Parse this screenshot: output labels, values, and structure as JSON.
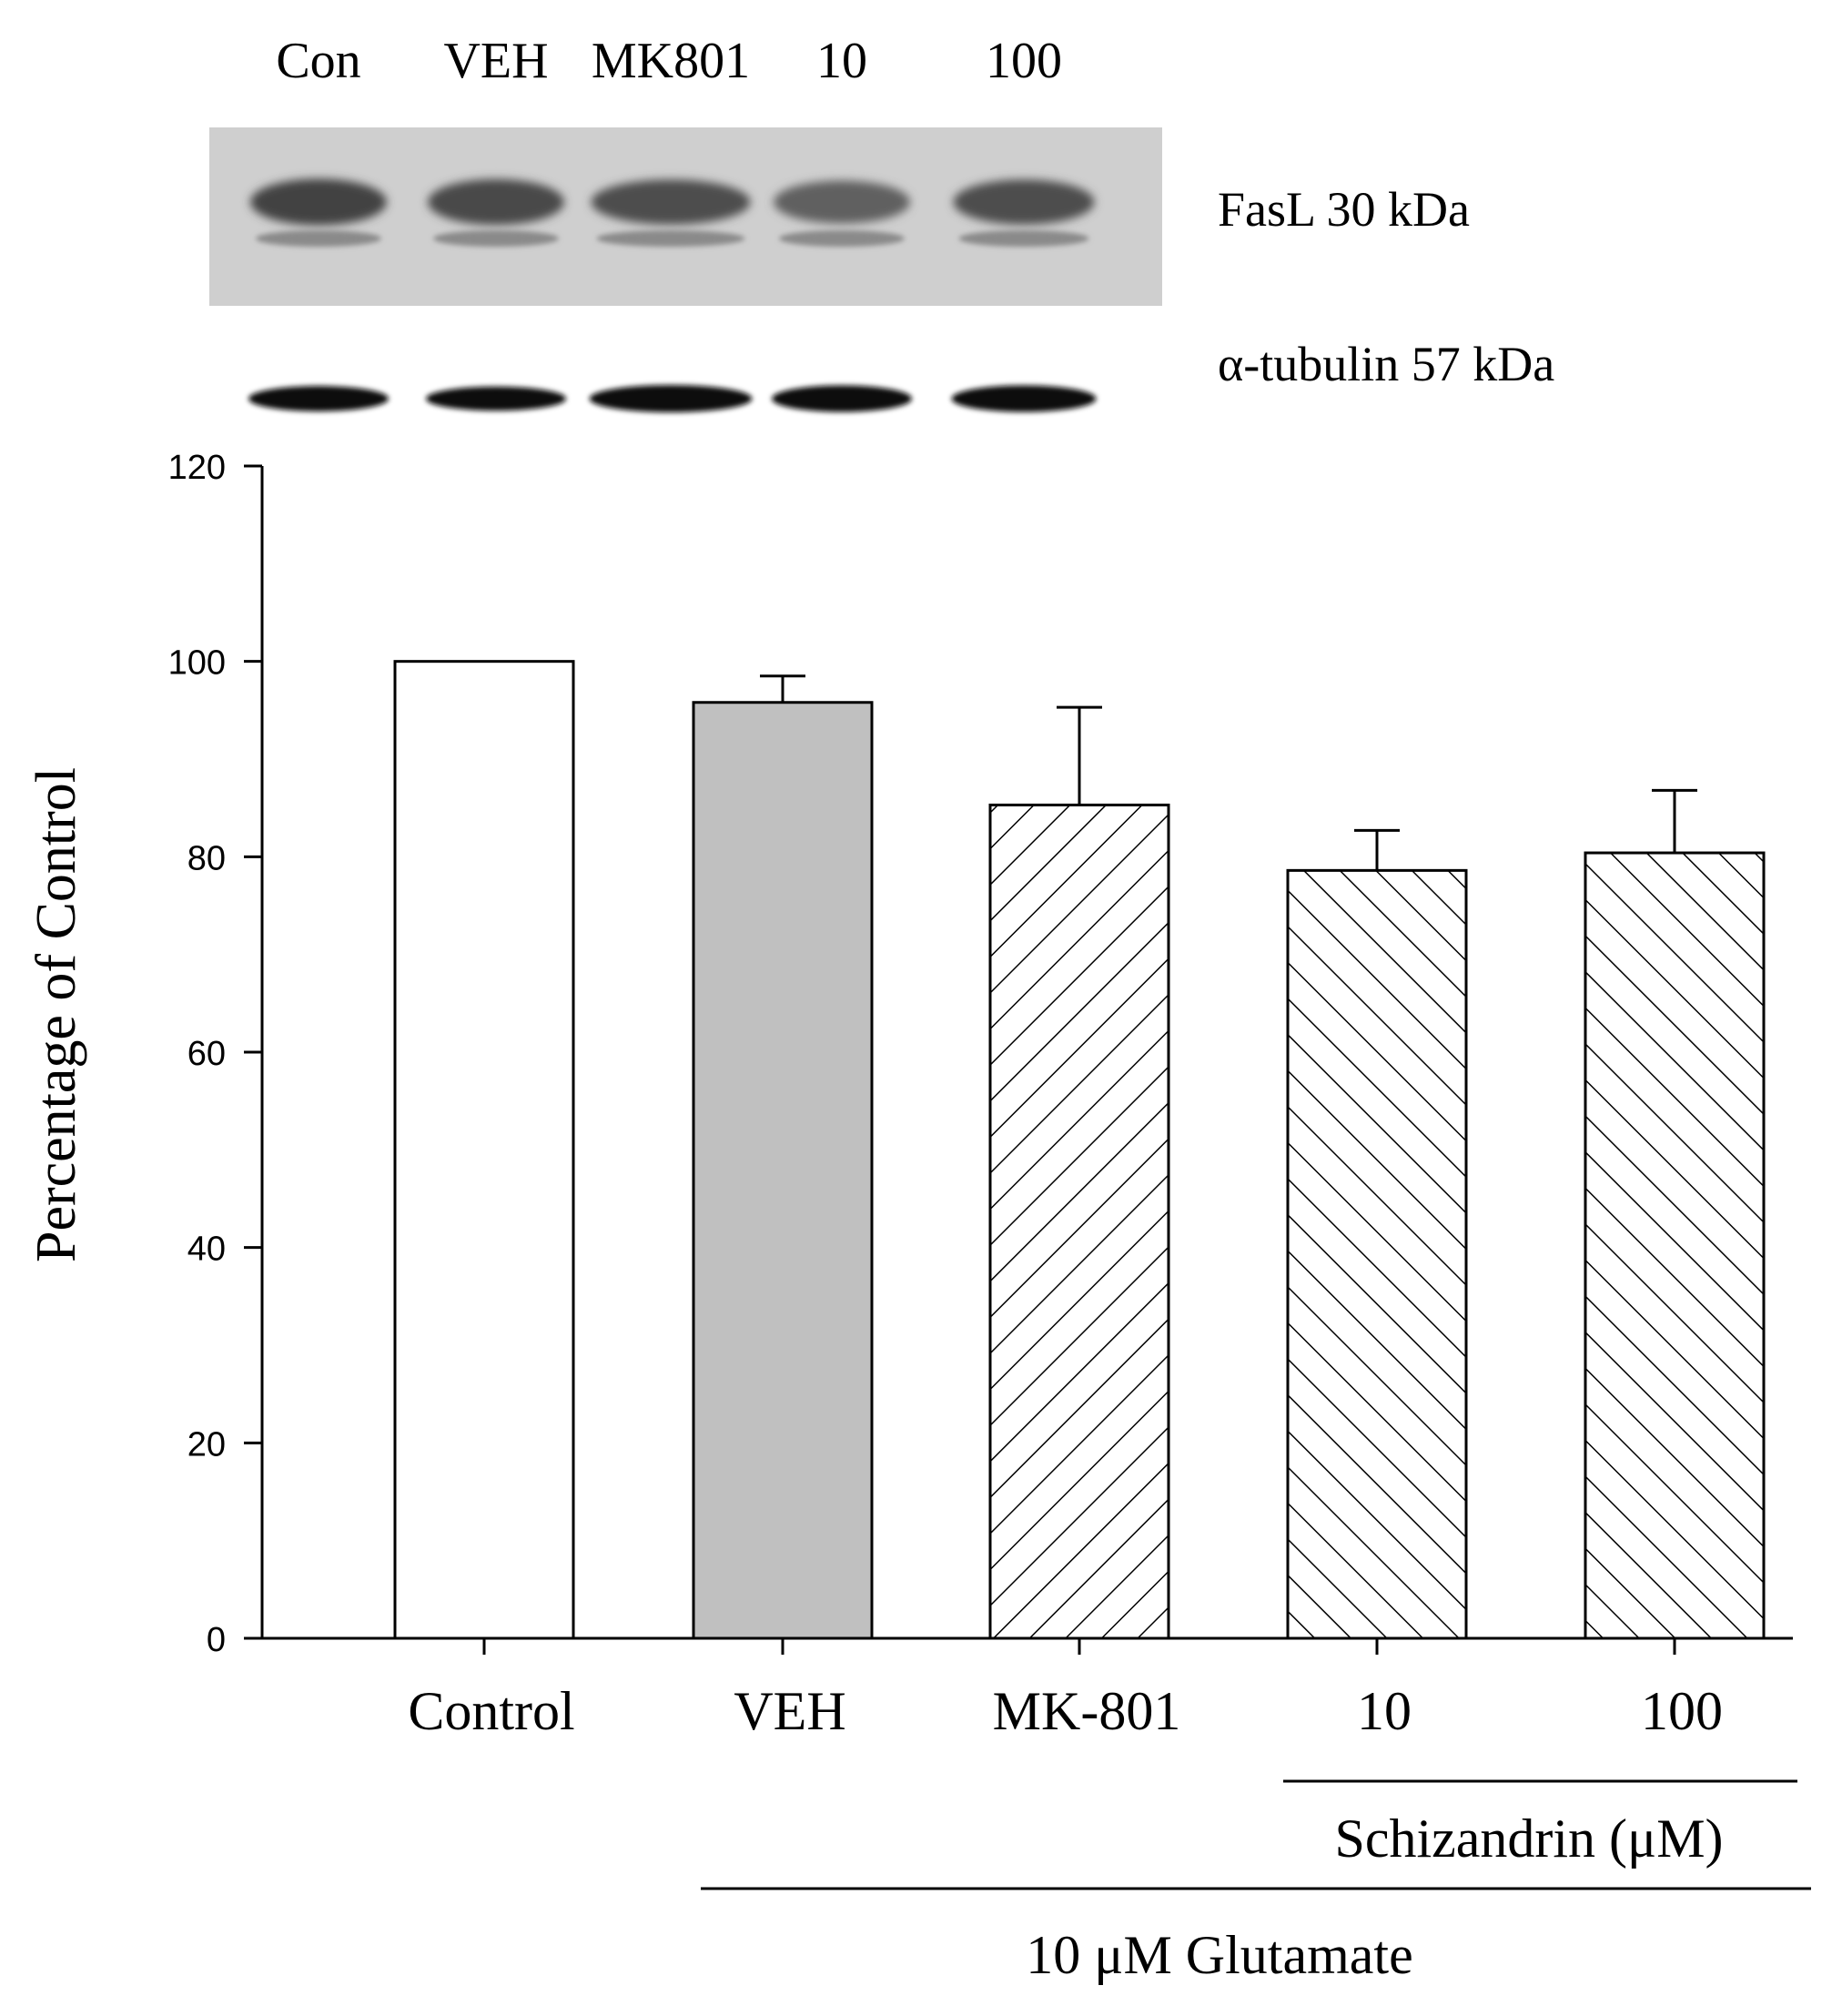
{
  "blot": {
    "lane_labels": [
      "Con",
      "VEH",
      "MK801",
      "10",
      "100"
    ],
    "fasl_label": "FasL 30 kDa",
    "tubulin_label": "α-tubulin 57 kDa",
    "band_intensity": {
      "fasl": [
        0.95,
        0.9,
        0.85,
        0.7,
        0.85
      ],
      "tubulin": [
        0.85,
        0.75,
        1.0,
        0.95,
        0.95
      ]
    }
  },
  "chart_data": {
    "type": "bar",
    "categories": [
      "Control",
      "VEH",
      "MK-801",
      "10",
      "100"
    ],
    "values": [
      100,
      95.8,
      85.3,
      78.6,
      80.4
    ],
    "errors": [
      0,
      2.7,
      10.0,
      4.1,
      6.4
    ],
    "bar_styles": [
      "white",
      "gray",
      "hatch-forward",
      "hatch-back",
      "hatch-back"
    ],
    "colors": {
      "gray": "#c0c0c0",
      "white": "#ffffff",
      "line": "#000000"
    },
    "ylabel": "Percentage of Control",
    "ylim": [
      0,
      120
    ],
    "yticks": [
      0,
      20,
      40,
      60,
      80,
      100,
      120
    ],
    "grid": false,
    "group_labels": {
      "schizandrin": "Schizandrin (μM)",
      "glutamate": "10 μM Glutamate"
    }
  }
}
